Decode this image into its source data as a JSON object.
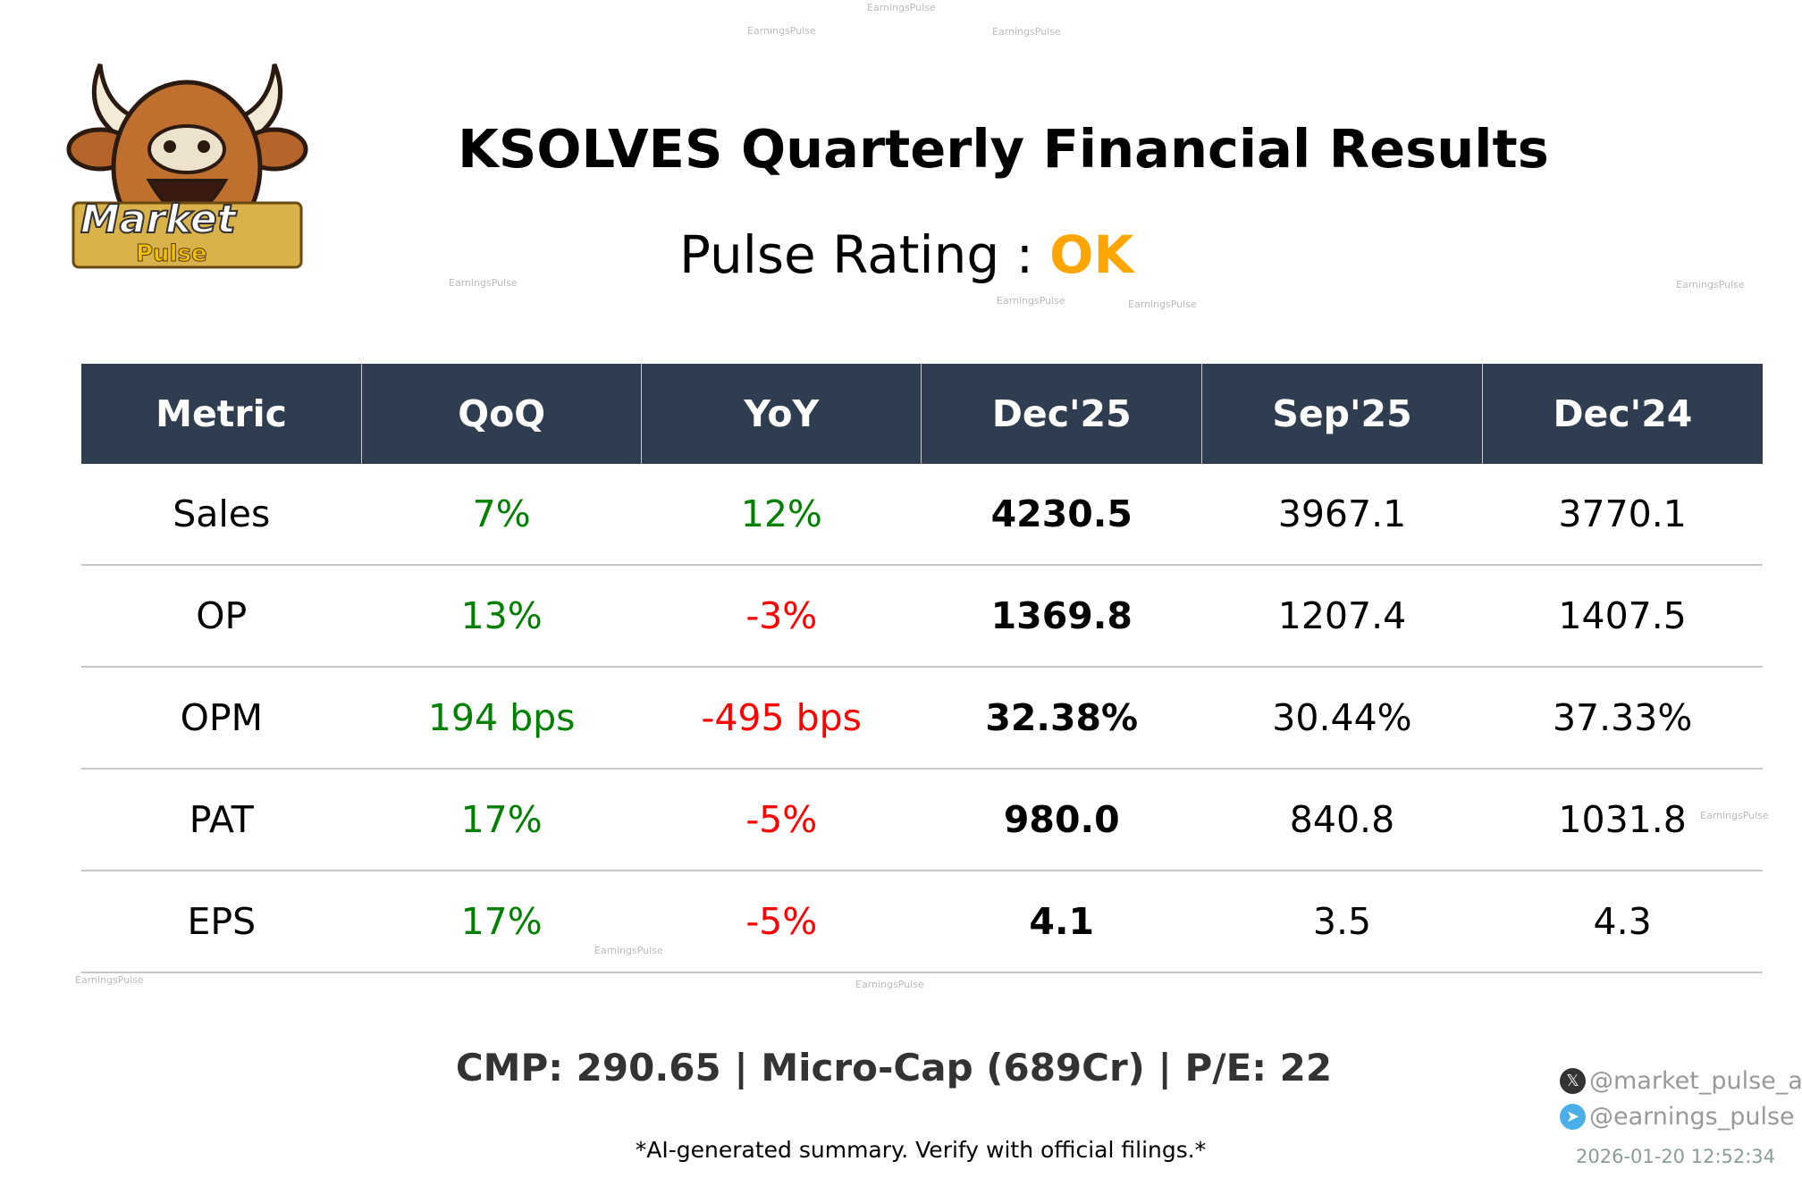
{
  "logo": {
    "text_top": "Market",
    "text_bottom": "Pulse"
  },
  "title": "KSOLVES Quarterly Financial Results",
  "rating": {
    "label": "Pulse Rating :",
    "value": "OK",
    "color": "#FFA500"
  },
  "table": {
    "headers": [
      "Metric",
      "QoQ",
      "YoY",
      "Dec'25",
      "Sep'25",
      "Dec'24"
    ],
    "rows": [
      [
        "Sales",
        "7%",
        "12%",
        "4230.5",
        "3967.1",
        "3770.1"
      ],
      [
        "OP",
        "13%",
        "-3%",
        "1369.8",
        "1207.4",
        "1407.5"
      ],
      [
        "OPM",
        "194 bps",
        "-495 bps",
        "32.38%",
        "30.44%",
        "37.33%"
      ],
      [
        "PAT",
        "17%",
        "-5%",
        "980.0",
        "840.8",
        "1031.8"
      ],
      [
        "EPS",
        "17%",
        "-5%",
        "4.1",
        "3.5",
        "4.3"
      ]
    ],
    "trend": [
      [
        "g",
        "g"
      ],
      [
        "g",
        "r"
      ],
      [
        "g",
        "r"
      ],
      [
        "g",
        "r"
      ],
      [
        "g",
        "r"
      ]
    ]
  },
  "colors": {
    "header_bg": "#2e3d50",
    "positive": "#008000",
    "negative": "#ff0000"
  },
  "summary": "CMP: 290.65 | Micro-Cap (689Cr) | P/E: 22",
  "disclaimer": "*AI-generated summary. Verify with official filings.*",
  "social": {
    "x": "@market_pulse_ai",
    "telegram": "@earnings_pulse"
  },
  "timestamp": "2026-01-20 12:52:34",
  "watermark": "EarningsPulse"
}
